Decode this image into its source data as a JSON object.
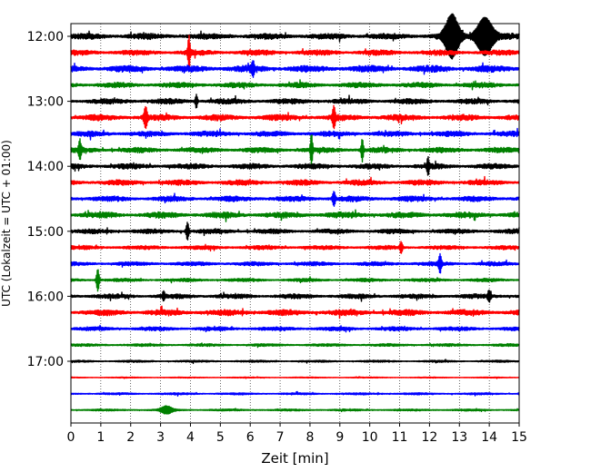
{
  "chart_data": {
    "type": "line",
    "subtype": "helicorder-seismogram",
    "xlabel": "Zeit  [min]",
    "ylabel": "UTC (Lokalzeit = UTC + 01:00)",
    "xlim": [
      0,
      15
    ],
    "x_ticks": [
      0,
      1,
      2,
      3,
      4,
      5,
      6,
      7,
      8,
      9,
      10,
      11,
      12,
      13,
      14,
      15
    ],
    "x_tick_labels": [
      "0",
      "1",
      "2",
      "3",
      "4",
      "5",
      "6",
      "7",
      "8",
      "9",
      "10",
      "11",
      "12",
      "13",
      "14",
      "15"
    ],
    "vertical_grid": "dotted",
    "y_ticks": [
      "12:00",
      "13:00",
      "14:00",
      "15:00",
      "16:00",
      "17:00"
    ],
    "trace_interval_minutes": 15,
    "start_time": "12:00",
    "colors_cycle": [
      "#000000",
      "#ff0000",
      "#0000ff",
      "#008000"
    ],
    "traces": [
      {
        "start": "12:00",
        "color": "#000000",
        "noise": 0.9,
        "events": [
          {
            "x": 12.75,
            "amp": 2.4,
            "width": 0.25
          },
          {
            "x": 13.85,
            "amp": 2.2,
            "width": 0.3
          }
        ]
      },
      {
        "start": "12:15",
        "color": "#ff0000",
        "noise": 0.8,
        "events": [
          {
            "x": 3.95,
            "amp": 2.0,
            "width": 0.04
          }
        ]
      },
      {
        "start": "12:30",
        "color": "#0000ff",
        "noise": 1.0,
        "events": [
          {
            "x": 6.1,
            "amp": 0.8,
            "width": 0.05
          }
        ]
      },
      {
        "start": "12:45",
        "color": "#008000",
        "noise": 0.8,
        "events": []
      },
      {
        "start": "13:00",
        "color": "#000000",
        "noise": 0.8,
        "events": [
          {
            "x": 4.2,
            "amp": 0.8,
            "width": 0.04
          }
        ]
      },
      {
        "start": "13:15",
        "color": "#ff0000",
        "noise": 0.9,
        "events": [
          {
            "x": 2.5,
            "amp": 1.2,
            "width": 0.06
          },
          {
            "x": 8.8,
            "amp": 1.2,
            "width": 0.05
          }
        ]
      },
      {
        "start": "13:30",
        "color": "#0000ff",
        "noise": 0.8,
        "events": []
      },
      {
        "start": "13:45",
        "color": "#008000",
        "noise": 0.8,
        "events": [
          {
            "x": 0.3,
            "amp": 1.0,
            "width": 0.05
          },
          {
            "x": 8.05,
            "amp": 1.8,
            "width": 0.04
          },
          {
            "x": 9.75,
            "amp": 1.3,
            "width": 0.04
          }
        ]
      },
      {
        "start": "14:00",
        "color": "#000000",
        "noise": 0.8,
        "events": [
          {
            "x": 11.95,
            "amp": 1.0,
            "width": 0.04
          }
        ]
      },
      {
        "start": "14:15",
        "color": "#ff0000",
        "noise": 0.8,
        "events": []
      },
      {
        "start": "14:30",
        "color": "#0000ff",
        "noise": 0.8,
        "events": [
          {
            "x": 8.8,
            "amp": 0.8,
            "width": 0.05
          }
        ]
      },
      {
        "start": "14:45",
        "color": "#008000",
        "noise": 0.9,
        "events": []
      },
      {
        "start": "15:00",
        "color": "#000000",
        "noise": 0.7,
        "events": [
          {
            "x": 3.9,
            "amp": 1.0,
            "width": 0.05
          }
        ]
      },
      {
        "start": "15:15",
        "color": "#ff0000",
        "noise": 0.6,
        "events": [
          {
            "x": 11.05,
            "amp": 0.6,
            "width": 0.05
          }
        ]
      },
      {
        "start": "15:30",
        "color": "#0000ff",
        "noise": 0.6,
        "events": [
          {
            "x": 12.35,
            "amp": 1.0,
            "width": 0.05
          }
        ]
      },
      {
        "start": "15:45",
        "color": "#008000",
        "noise": 0.5,
        "events": [
          {
            "x": 0.9,
            "amp": 1.3,
            "width": 0.05
          }
        ]
      },
      {
        "start": "16:00",
        "color": "#000000",
        "noise": 0.7,
        "events": [
          {
            "x": 3.1,
            "amp": 0.5,
            "width": 0.04
          },
          {
            "x": 14.0,
            "amp": 0.6,
            "width": 0.05
          }
        ]
      },
      {
        "start": "16:15",
        "color": "#ff0000",
        "noise": 0.9,
        "events": []
      },
      {
        "start": "16:30",
        "color": "#0000ff",
        "noise": 0.6,
        "events": []
      },
      {
        "start": "16:45",
        "color": "#008000",
        "noise": 0.4,
        "events": []
      },
      {
        "start": "17:00",
        "color": "#000000",
        "noise": 0.3,
        "events": []
      },
      {
        "start": "17:15",
        "color": "#ff0000",
        "noise": 0.15,
        "events": []
      },
      {
        "start": "17:30",
        "color": "#0000ff",
        "noise": 0.3,
        "events": []
      },
      {
        "start": "17:45",
        "color": "#008000",
        "noise": 0.3,
        "events": [
          {
            "x": 3.2,
            "amp": 0.4,
            "width": 0.2
          }
        ]
      }
    ]
  }
}
